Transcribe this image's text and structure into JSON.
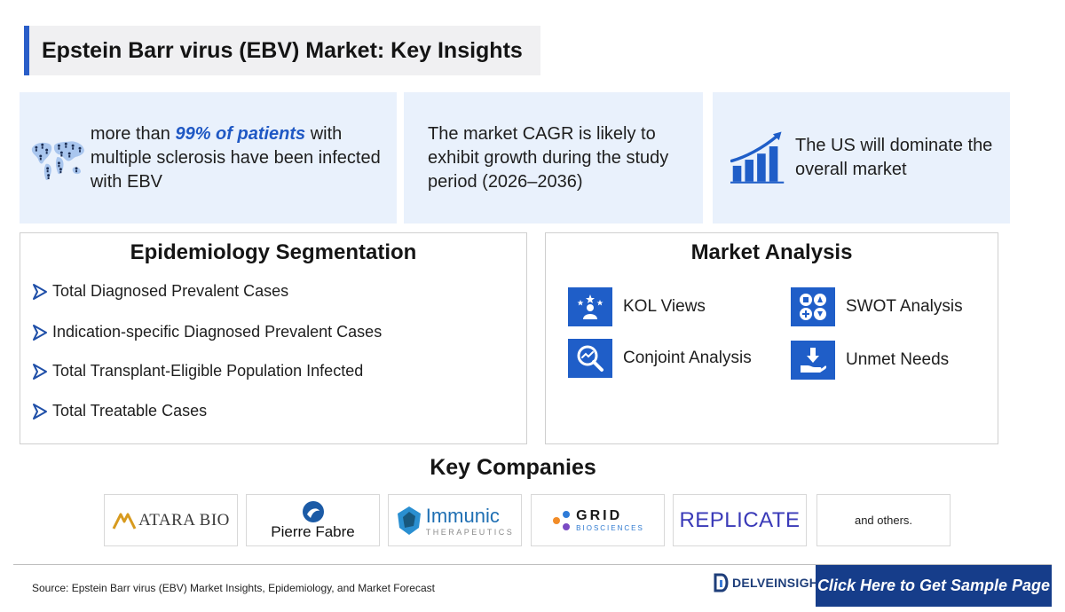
{
  "header": {
    "title": "Epstein Barr virus (EBV) Market: Key Insights"
  },
  "insights": {
    "card1": {
      "prefix": "more than ",
      "highlight": "99% of patients",
      "suffix": " with multiple sclerosis have been infected with EBV",
      "icon": "world-map-icon"
    },
    "card2": {
      "text": "The market CAGR is likely to exhibit growth during the study period (2026–2036)"
    },
    "card3": {
      "text": "The US will dominate the overall market",
      "icon": "growth-chart-icon"
    }
  },
  "epidemiology": {
    "title": "Epidemiology Segmentation",
    "items": [
      "Total Diagnosed Prevalent Cases",
      "Indication-specific Diagnosed Prevalent Cases",
      "Total Transplant-Eligible Population Infected",
      "Total Treatable Cases"
    ]
  },
  "market_analysis": {
    "title": "Market Analysis",
    "items": [
      {
        "label": "KOL Views",
        "icon": "kol-icon"
      },
      {
        "label": "SWOT Analysis",
        "icon": "swot-icon"
      },
      {
        "label": "Conjoint Analysis",
        "icon": "conjoint-icon"
      },
      {
        "label": "Unmet Needs",
        "icon": "unmet-needs-icon"
      }
    ]
  },
  "companies": {
    "title": "Key Companies",
    "logos": {
      "atara": "ATARA BIO",
      "pierre": "Pierre Fabre",
      "immunic": "Immunic",
      "immunic_sub": "THERAPEUTICS",
      "grid": "GRID",
      "grid_sub": "BIOSCIENCES",
      "replicate": "REPLICATE"
    },
    "others": "and others."
  },
  "footer": {
    "source": "Source: Epstein Barr virus (EBV) Market Insights, Epidemiology, and Market Forecast",
    "brand": "DELVEINSIGHT",
    "cta": "Click Here to Get Sample Page"
  },
  "colors": {
    "accent": "#1f5ec8",
    "card_bg": "#e9f1fc",
    "cta_bg": "#163d8a"
  }
}
